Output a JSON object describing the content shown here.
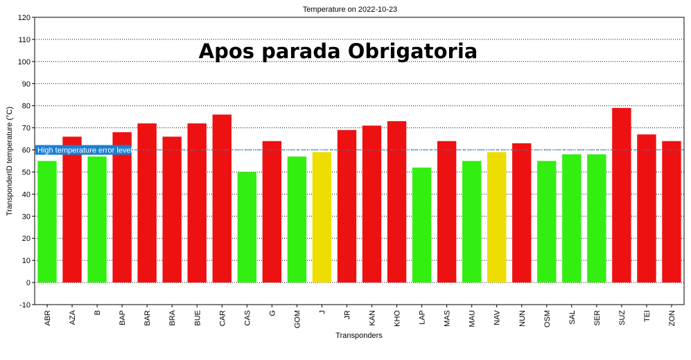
{
  "chart_data": {
    "type": "bar",
    "title": "Temperature on 2022-10-23",
    "overlay_text": "Apos parada Obrigatoria",
    "xlabel": "Transponders",
    "ylabel": "TransponderID temperature (°C)",
    "ylim": [
      -10,
      120
    ],
    "yticks": [
      -10,
      0,
      10,
      20,
      30,
      40,
      50,
      60,
      70,
      80,
      90,
      100,
      110,
      120
    ],
    "grid": true,
    "categories": [
      "ABR",
      "AZA",
      "B",
      "BAP",
      "BAR",
      "BRA",
      "BUE",
      "CAR",
      "CAS",
      "G",
      "GOM",
      "J",
      "JR",
      "KAN",
      "KHO",
      "LAP",
      "MAS",
      "MAU",
      "NAV",
      "NUN",
      "OSM",
      "SAL",
      "SER",
      "SUZ",
      "TEI",
      "ZON"
    ],
    "values": [
      55,
      66,
      57,
      68,
      72,
      66,
      72,
      76,
      50,
      64,
      57,
      59,
      69,
      71,
      73,
      52,
      64,
      55,
      59,
      63,
      55,
      58,
      58,
      79,
      67,
      64
    ],
    "bar_status": [
      "green",
      "red",
      "green",
      "red",
      "red",
      "red",
      "red",
      "red",
      "green",
      "red",
      "green",
      "yellow",
      "red",
      "red",
      "red",
      "green",
      "red",
      "green",
      "yellow",
      "red",
      "green",
      "green",
      "green",
      "red",
      "red",
      "red"
    ],
    "status_colors": {
      "green": "#33ee11",
      "red": "#ee1111",
      "yellow": "#eedd00"
    },
    "reference_line": {
      "value": 60,
      "label": "High temperature error level",
      "color": "#1a7fd4"
    }
  }
}
